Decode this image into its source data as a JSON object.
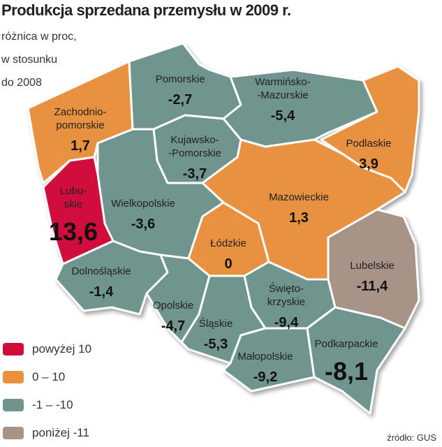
{
  "title": "Produkcja sprzedana przemysłu w 2009 r.",
  "subtitle_lines": [
    "różnica w proc,",
    "w stosunku",
    "do 2008"
  ],
  "colors": {
    "above10": "#d10a3c",
    "0to10": "#e8913f",
    "m1tom10": "#6f948e",
    "below11": "#a89389",
    "border": "#ffffff"
  },
  "regions": [
    {
      "id": "zachodniopomorskie",
      "name_lines": [
        "Zachodnio-",
        "pomorskie"
      ],
      "value": "1,7",
      "cls": "0to10"
    },
    {
      "id": "pomorskie",
      "name_lines": [
        "Pomorskie"
      ],
      "value": "-2,7",
      "cls": "m1tom10"
    },
    {
      "id": "warminsko-mazurskie",
      "name_lines": [
        "Warmińsko-",
        "-Mazurskie"
      ],
      "value": "-5,4",
      "cls": "m1tom10"
    },
    {
      "id": "podlaskie",
      "name_lines": [
        "Podlaskie"
      ],
      "value": "3,9",
      "cls": "0to10"
    },
    {
      "id": "kujawsko-pomorskie",
      "name_lines": [
        "Kujawsko-",
        "-Pomorskie"
      ],
      "value": "-3,7",
      "cls": "m1tom10"
    },
    {
      "id": "mazowieckie",
      "name_lines": [
        "Mazowieckie"
      ],
      "value": "1,3",
      "cls": "0to10"
    },
    {
      "id": "wielkopolskie",
      "name_lines": [
        "Wielkopolskie"
      ],
      "value": "-3,6",
      "cls": "m1tom10"
    },
    {
      "id": "lubuskie",
      "name_lines": [
        "Lubu-",
        "skie"
      ],
      "value": "13,6",
      "cls": "above10"
    },
    {
      "id": "lodzkie",
      "name_lines": [
        "Łódzkie"
      ],
      "value": "0",
      "cls": "0to10"
    },
    {
      "id": "lubelskie",
      "name_lines": [
        "Lubelskie"
      ],
      "value": "-11,4",
      "cls": "below11"
    },
    {
      "id": "dolnoslaskie",
      "name_lines": [
        "Dolnośląskie"
      ],
      "value": "-1,4",
      "cls": "m1tom10"
    },
    {
      "id": "opolskie",
      "name_lines": [
        "Opolskie"
      ],
      "value": "-4,7",
      "cls": "m1tom10"
    },
    {
      "id": "slaskie",
      "name_lines": [
        "Śląskie"
      ],
      "value": "-5,3",
      "cls": "m1tom10"
    },
    {
      "id": "swietokrzyskie",
      "name_lines": [
        "Święto-",
        "krzyskie"
      ],
      "value": "-9,4",
      "cls": "m1tom10"
    },
    {
      "id": "malopolskie",
      "name_lines": [
        "Małopolskie"
      ],
      "value": "-9,2",
      "cls": "m1tom10"
    },
    {
      "id": "podkarpackie",
      "name_lines": [
        "Podkarpackie"
      ],
      "value": "-8,1",
      "cls": "m1tom10"
    }
  ],
  "legend": [
    {
      "label": "powyżej 10",
      "cls": "above10"
    },
    {
      "label": "0 – 10",
      "cls": "0to10"
    },
    {
      "label": "-1 – -10",
      "cls": "m1tom10"
    },
    {
      "label": "poniżej -11",
      "cls": "below11"
    }
  ],
  "source": "źródło: GUS"
}
